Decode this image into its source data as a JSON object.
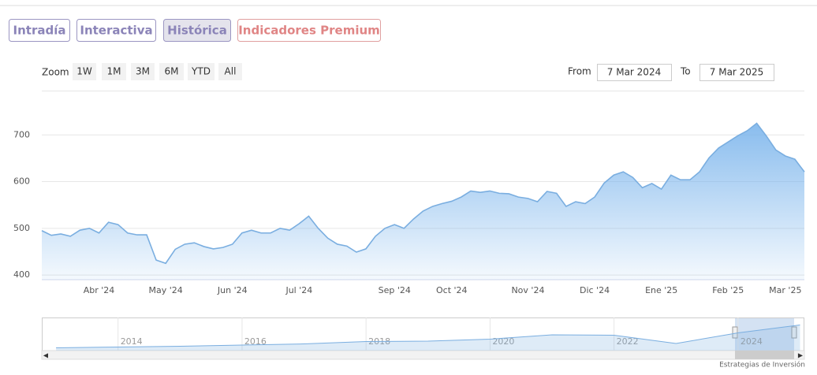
{
  "tabs": [
    "Intradía",
    "Interactiva",
    "Histórica",
    "Indicadores Premium"
  ],
  "zoom": {
    "label": "Zoom",
    "buttons": [
      "1W",
      "1M",
      "3M",
      "6M",
      "YTD",
      "All"
    ]
  },
  "range": {
    "from_label": "From",
    "from": "7 Mar 2024",
    "to_label": "To",
    "to": "7 Mar 2025"
  },
  "credit": "Estrategias de Inversión",
  "chart_data": [
    {
      "type": "area",
      "color": "#7aaee0",
      "categories": [
        null,
        null,
        null,
        null,
        null,
        null,
        "Abr '24",
        null,
        null,
        null,
        null,
        null,
        null,
        "May '24",
        null,
        null,
        null,
        null,
        null,
        null,
        "Jun '24",
        null,
        null,
        null,
        null,
        null,
        null,
        "Jul '24",
        null,
        null,
        null,
        null,
        null,
        null,
        null,
        null,
        null,
        "Sep '24",
        null,
        null,
        null,
        null,
        null,
        "Oct '24",
        null,
        null,
        null,
        null,
        null,
        null,
        null,
        "Nov '24",
        null,
        null,
        null,
        null,
        null,
        null,
        "Dic '24",
        null,
        null,
        null,
        null,
        null,
        null,
        "Ene '25",
        null,
        null,
        null,
        null,
        null,
        null,
        "Feb '25",
        null,
        null,
        null,
        null,
        null,
        "Mar '25",
        null,
        null
      ],
      "values": [
        495,
        485,
        488,
        483,
        496,
        500,
        490,
        513,
        508,
        490,
        486,
        486,
        432,
        425,
        455,
        466,
        469,
        461,
        456,
        459,
        466,
        490,
        496,
        490,
        490,
        500,
        496,
        510,
        526,
        500,
        479,
        466,
        462,
        449,
        456,
        483,
        500,
        508,
        500,
        520,
        537,
        547,
        553,
        558,
        567,
        580,
        577,
        580,
        575,
        574,
        567,
        564,
        557,
        579,
        575,
        547,
        557,
        553,
        567,
        597,
        614,
        621,
        609,
        587,
        596,
        584,
        614,
        604,
        604,
        621,
        651,
        672,
        685,
        698,
        709,
        725,
        698,
        668,
        655,
        648,
        621
      ],
      "ylim": [
        390,
        795
      ],
      "yticks": [
        400,
        500,
        600,
        700
      ],
      "grid": true
    },
    {
      "type": "navigator",
      "color": "#7aaee0",
      "x": [
        2013,
        2014,
        2015,
        2016,
        2017,
        2018,
        2019,
        2020,
        2021,
        2022,
        2023,
        2024,
        2025
      ],
      "values": [
        70,
        90,
        110,
        140,
        170,
        230,
        240,
        290,
        400,
        390,
        180,
        450,
        650
      ],
      "xlim": [
        2012.77,
        2025.07
      ],
      "xticks": [
        2014,
        2016,
        2018,
        2020,
        2022,
        2024
      ],
      "ylim": [
        0,
        800
      ],
      "grid": true
    }
  ]
}
